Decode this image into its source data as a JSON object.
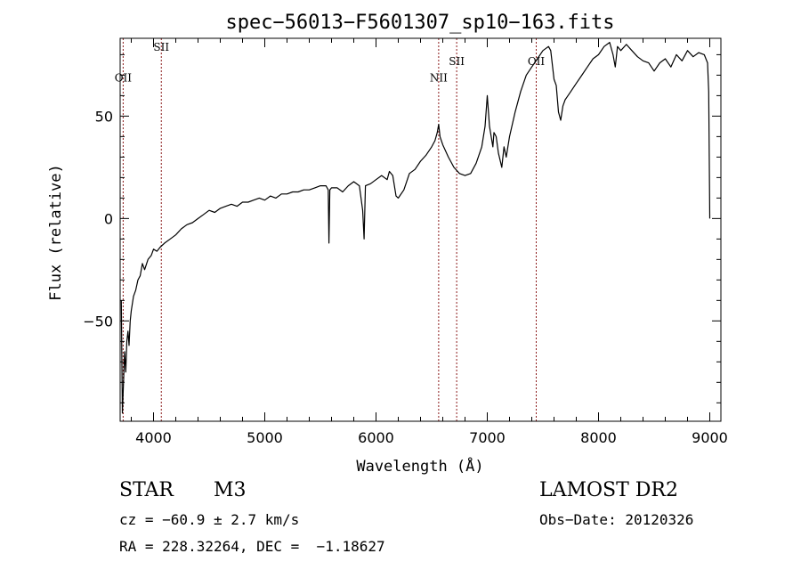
{
  "chart_data": {
    "type": "line",
    "title": "spec−56013−F5601307_sp10−163.fits",
    "xlabel": "Wavelength (Å)",
    "ylabel": "Flux (relative)",
    "xlim": [
      3700,
      9100
    ],
    "ylim": [
      -99,
      88
    ],
    "xticks": [
      4000,
      5000,
      6000,
      7000,
      8000,
      9000
    ],
    "xtick_labels": [
      "4000",
      "5000",
      "6000",
      "7000",
      "8000",
      "9000"
    ],
    "yticks": [
      -50,
      0,
      50
    ],
    "ytick_labels": [
      "−50",
      "0",
      "50"
    ],
    "grid": false,
    "legend": "none",
    "line_color": "#000000",
    "marker_color": "#8b1a1a",
    "spectral_lines": [
      {
        "label": "OII",
        "x": 3727,
        "label_y": 67
      },
      {
        "label": "SII",
        "x": 4070,
        "label_y": 82
      },
      {
        "label": "NII",
        "x": 6563,
        "label_y": 67
      },
      {
        "label": "SII",
        "x": 6725,
        "label_y": 75
      },
      {
        "label": "OII",
        "x": 7440,
        "label_y": 75
      }
    ],
    "series": [
      {
        "x": [
          3710,
          3720,
          3730,
          3740,
          3750,
          3760,
          3770,
          3780,
          3790,
          3800,
          3820,
          3840,
          3860,
          3880,
          3900,
          3920,
          3950,
          3980,
          4000,
          4030,
          4060,
          4100,
          4150,
          4200,
          4250,
          4300,
          4350,
          4400,
          4450,
          4500,
          4550,
          4600,
          4650,
          4700,
          4750,
          4800,
          4850,
          4900,
          4950,
          5000,
          5050,
          5100,
          5150,
          5200,
          5250,
          5300,
          5350,
          5400,
          5450,
          5500,
          5550,
          5570,
          5577,
          5585,
          5600,
          5650,
          5700,
          5750,
          5800,
          5850,
          5880,
          5893,
          5905,
          5950,
          6000,
          6050,
          6100,
          6120,
          6150,
          6180,
          6200,
          6250,
          6300,
          6350,
          6400,
          6450,
          6500,
          6530,
          6550,
          6563,
          6575,
          6600,
          6650,
          6700,
          6750,
          6800,
          6850,
          6900,
          6950,
          6980,
          7000,
          7020,
          7050,
          7060,
          7080,
          7100,
          7130,
          7150,
          7170,
          7200,
          7250,
          7300,
          7350,
          7400,
          7450,
          7500,
          7550,
          7570,
          7600,
          7620,
          7640,
          7660,
          7680,
          7700,
          7750,
          7800,
          7850,
          7900,
          7950,
          8000,
          8050,
          8100,
          8130,
          8150,
          8170,
          8200,
          8250,
          8300,
          8350,
          8400,
          8450,
          8500,
          8550,
          8600,
          8650,
          8700,
          8750,
          8800,
          8850,
          8900,
          8950,
          8980,
          8990,
          9000
        ],
        "y": [
          -40,
          -95,
          -80,
          -65,
          -75,
          -60,
          -55,
          -62,
          -50,
          -45,
          -38,
          -35,
          -30,
          -28,
          -22,
          -25,
          -20,
          -18,
          -15,
          -16,
          -14,
          -12,
          -10,
          -8,
          -5,
          -3,
          -2,
          0,
          2,
          4,
          3,
          5,
          6,
          7,
          6,
          8,
          8,
          9,
          10,
          9,
          11,
          10,
          12,
          12,
          13,
          13,
          14,
          14,
          15,
          16,
          16,
          14,
          -12,
          14,
          15,
          15,
          13,
          16,
          18,
          16,
          4,
          -10,
          16,
          17,
          19,
          21,
          19,
          23,
          21,
          11,
          10,
          14,
          22,
          24,
          28,
          31,
          35,
          38,
          42,
          46,
          40,
          36,
          30,
          25,
          22,
          21,
          22,
          27,
          35,
          45,
          60,
          45,
          35,
          42,
          40,
          32,
          25,
          35,
          30,
          40,
          52,
          62,
          70,
          74,
          78,
          82,
          84,
          82,
          68,
          65,
          52,
          48,
          55,
          58,
          62,
          66,
          70,
          74,
          78,
          80,
          84,
          86,
          80,
          74,
          84,
          82,
          85,
          82,
          79,
          77,
          76,
          72,
          76,
          78,
          74,
          80,
          77,
          82,
          79,
          81,
          80,
          76,
          62,
          0
        ]
      }
    ]
  },
  "info": {
    "object_type": "STAR",
    "subclass": "M3",
    "cz": "cz = −60.9 ± 2.7 km/s",
    "radec": "RA = 228.32264, DEC =  −1.18627",
    "survey": "LAMOST DR2",
    "obs_date": "Obs−Date: 20120326"
  }
}
